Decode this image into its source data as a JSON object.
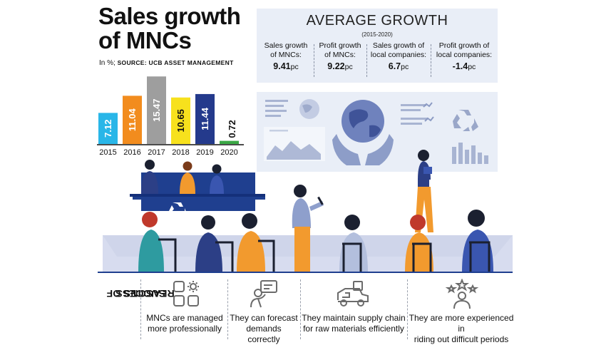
{
  "title": "Sales growth of MNCs",
  "subtitle_unit": "In %;",
  "subtitle_source": "SOURCE: UCB ASSET MANAGEMENT",
  "chart_data": {
    "type": "bar",
    "title": "Sales growth of MNCs",
    "categories": [
      "2015",
      "2016",
      "2017",
      "2018",
      "2019",
      "2020"
    ],
    "values": [
      7.12,
      11.04,
      15.47,
      10.65,
      11.44,
      0.72
    ],
    "data_labels": [
      "7.12",
      "11.04",
      "15.47",
      "10.65",
      "11.44",
      "0.72"
    ],
    "colors": [
      "#29b6e8",
      "#f28c1e",
      "#9e9e9e",
      "#f7e11d",
      "#243a8c",
      "#3aa845"
    ],
    "ylim": [
      0,
      16
    ],
    "grid": false,
    "legend": "none"
  },
  "average_growth": {
    "title": "AVERAGE GROWTH",
    "period": "(2015-2020)",
    "items": [
      {
        "label_line1": "Sales growth",
        "label_line2": "of MNCs:",
        "value": "9.41",
        "unit": "pc"
      },
      {
        "label_line1": "Profit growth",
        "label_line2": "of MNCs:",
        "value": "9.22",
        "unit": "pc"
      },
      {
        "label_line1": "Sales growth of",
        "label_line2": "local companies:",
        "value": "6.7",
        "unit": "pc"
      },
      {
        "label_line1": "Profit growth of",
        "label_line2": "local companies:",
        "value": "-1.4",
        "unit": "pc"
      }
    ]
  },
  "reasons": {
    "title_line1": "REASONS OF",
    "title_line2": "SUCCESS",
    "items": [
      {
        "icon": "apps-gear-icon",
        "line1": "MNCs are managed",
        "line2": "more professionally"
      },
      {
        "icon": "forecast-person-icon",
        "line1": "They can forecast",
        "line2": "demands correctly"
      },
      {
        "icon": "supply-truck-icon",
        "line1": "They maintain supply chain",
        "line2": "for raw materials efficiently"
      },
      {
        "icon": "experienced-person-stars-icon",
        "line1": "They are more experienced in",
        "line2": "riding out difficult periods"
      }
    ]
  },
  "colors": {
    "panel_bg": "#e9eef7",
    "navy": "#1f3f8f",
    "orange": "#f29a2e",
    "floor": "#d7dcef"
  }
}
